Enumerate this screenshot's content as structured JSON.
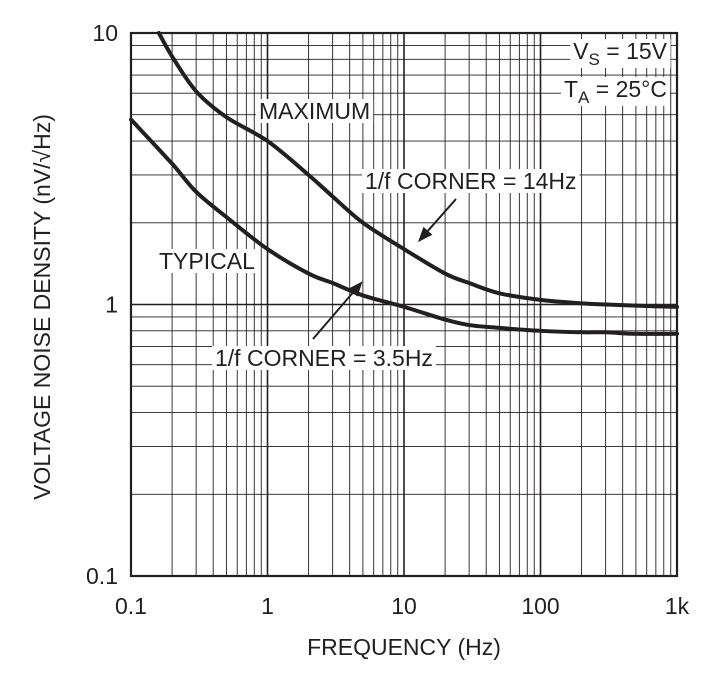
{
  "chart_data": {
    "type": "line",
    "x_scale": "log",
    "y_scale": "log",
    "xlim": [
      0.1,
      1000
    ],
    "ylim": [
      0.1,
      10
    ],
    "grid": true,
    "xlabel": "FREQUENCY (Hz)",
    "ylabel": "VOLTAGE NOISE DENSITY (nV/√Hz)",
    "x_ticks": [
      {
        "value": 0.1,
        "label": "0.1"
      },
      {
        "value": 1,
        "label": "1"
      },
      {
        "value": 10,
        "label": "10"
      },
      {
        "value": 100,
        "label": "100"
      },
      {
        "value": 1000,
        "label": "1k"
      }
    ],
    "y_ticks": [
      {
        "value": 0.1,
        "label": "0.1"
      },
      {
        "value": 1,
        "label": "1"
      },
      {
        "value": 10,
        "label": "10"
      }
    ],
    "conditions": [
      {
        "main": "V",
        "sub": "S",
        "rest": " = 15V"
      },
      {
        "main": "T",
        "sub": "A",
        "rest": " = 25°C"
      }
    ],
    "series": [
      {
        "name": "MAXIMUM",
        "x": [
          0.16,
          0.2,
          0.3,
          0.5,
          1,
          2,
          3,
          5,
          10,
          20,
          30,
          50,
          100,
          200,
          300,
          500,
          1000
        ],
        "y": [
          10,
          8.2,
          6.1,
          4.9,
          4.0,
          3.0,
          2.5,
          2.0,
          1.6,
          1.3,
          1.2,
          1.1,
          1.04,
          1.01,
          1.0,
          0.99,
          0.98
        ]
      },
      {
        "name": "TYPICAL",
        "x": [
          0.1,
          0.2,
          0.3,
          0.5,
          1,
          2,
          3,
          5,
          10,
          20,
          30,
          50,
          100,
          200,
          300,
          500,
          1000
        ],
        "y": [
          4.8,
          3.3,
          2.6,
          2.1,
          1.6,
          1.3,
          1.2,
          1.08,
          0.98,
          0.88,
          0.84,
          0.82,
          0.8,
          0.79,
          0.79,
          0.78,
          0.78
        ]
      }
    ],
    "annotations": [
      {
        "text": "MAXIMUM",
        "target_series": "MAXIMUM"
      },
      {
        "text": "TYPICAL",
        "target_series": "TYPICAL"
      },
      {
        "text": "1/f CORNER = 14Hz",
        "arrow_to": {
          "x": 10,
          "y": 1.6
        }
      },
      {
        "text": "1/f CORNER = 3.5Hz",
        "arrow_to": {
          "x": 4.5,
          "y": 1.1
        }
      }
    ]
  }
}
